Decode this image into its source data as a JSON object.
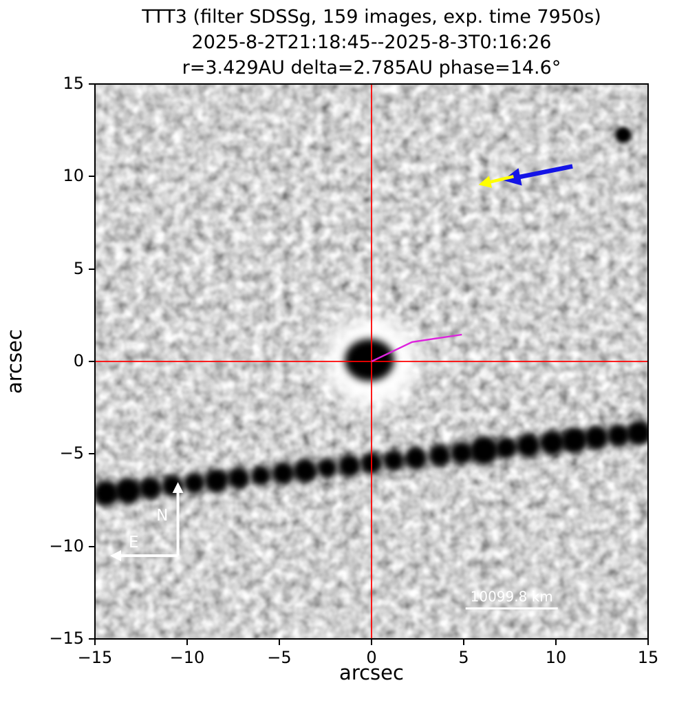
{
  "title": {
    "line1": "TTT3 (filter SDSSg, 159 images, exp. time 7950s)",
    "line2": "2025-8-2T21:18:45--2025-8-3T0:16:26",
    "line3": "r=3.429AU delta=2.785AU phase=14.6°"
  },
  "axes": {
    "xlabel": "arcsec",
    "ylabel": "arcsec",
    "x_tick_labels": [
      "−15",
      "−10",
      "−5",
      "0",
      "5",
      "10",
      "15"
    ],
    "y_tick_labels": [
      "15",
      "10",
      "5",
      "0",
      "−5",
      "−10",
      "−15"
    ]
  },
  "chart_data": {
    "type": "heatmap",
    "title": "TTT3 (filter SDSSg, 159 images, exp. time 7950s)",
    "subtitle": [
      "2025-8-2T21:18:45--2025-8-3T0:16:26",
      "r=3.429AU delta=2.785AU phase=14.6°"
    ],
    "xlabel": "arcsec",
    "ylabel": "arcsec",
    "xlim": [
      -15,
      15
    ],
    "ylim": [
      -15,
      15
    ],
    "x_ticks": [
      -15,
      -10,
      -5,
      0,
      5,
      10,
      15
    ],
    "y_ticks": [
      15,
      10,
      5,
      0,
      -5,
      -10,
      -15
    ],
    "image_description": "Grayscale stacked telescope image: bright comet coma with dark saturated nucleus at the origin, red crosshair through (0,0), magenta jet/direction line toward upper right, blue and yellow direction arrows at upper right, diagonal background star trail of dark blobs rising from (-15,-7.2) to (15,-3.9), dark field star at top right, white N/E compass at lower left, white scale bar at lower right",
    "background_gray": "#a8a8a8",
    "target": {
      "x": 0,
      "y": 0,
      "coma_radius_arcsec": 2.5,
      "nucleus_rx": 1.35,
      "nucleus_ry": 1.15
    },
    "crosshair": {
      "x": 0,
      "y": 0,
      "color": "#ff0000"
    },
    "jet_line": {
      "points": [
        [
          0,
          0
        ],
        [
          2.2,
          1.05
        ],
        [
          4.9,
          1.45
        ]
      ],
      "color": "#dd22dd"
    },
    "blue_arrow": {
      "x1": 10.9,
      "y1": 10.55,
      "x2": 7.4,
      "y2": 9.85,
      "color": "#1414e6"
    },
    "yellow_arrow": {
      "x1": 7.7,
      "y1": 10.0,
      "x2": 6.0,
      "y2": 9.6,
      "color": "#ffff00"
    },
    "field_star": {
      "x": 13.65,
      "y": 12.25
    },
    "star_trail": {
      "points": [
        [
          -14.4,
          -7.13,
          0.7
        ],
        [
          -13.2,
          -6.99,
          0.72
        ],
        [
          -12.0,
          -6.86,
          0.62
        ],
        [
          -10.8,
          -6.72,
          0.6
        ],
        [
          -9.6,
          -6.58,
          0.58
        ],
        [
          -8.4,
          -6.45,
          0.66
        ],
        [
          -7.2,
          -6.31,
          0.6
        ],
        [
          -6.0,
          -6.18,
          0.55
        ],
        [
          -4.8,
          -6.04,
          0.62
        ],
        [
          -3.6,
          -5.91,
          0.66
        ],
        [
          -2.4,
          -5.77,
          0.55
        ],
        [
          -1.2,
          -5.64,
          0.62
        ],
        [
          0.0,
          -5.5,
          0.6
        ],
        [
          1.2,
          -5.36,
          0.58
        ],
        [
          2.4,
          -5.23,
          0.62
        ],
        [
          3.7,
          -5.08,
          0.6
        ],
        [
          4.9,
          -4.95,
          0.62
        ],
        [
          6.1,
          -4.81,
          0.78
        ],
        [
          7.3,
          -4.68,
          0.6
        ],
        [
          8.5,
          -4.54,
          0.66
        ],
        [
          9.8,
          -4.39,
          0.68
        ],
        [
          11.0,
          -4.26,
          0.72
        ],
        [
          12.2,
          -4.12,
          0.66
        ],
        [
          13.4,
          -3.99,
          0.62
        ],
        [
          14.5,
          -3.86,
          0.68
        ]
      ]
    },
    "compass": {
      "origin": [
        -10.5,
        -10.5
      ],
      "north_tip": [
        -10.5,
        -6.7
      ],
      "east_tip": [
        -14.0,
        -10.5
      ],
      "label_north_pos": [
        -11.35,
        -8.6
      ],
      "label_east_pos": [
        -12.9,
        -10.05
      ],
      "labels": {
        "north": "N",
        "east": "E"
      }
    },
    "scale_bar": {
      "x1": 5.1,
      "x2": 10.1,
      "y": -13.35,
      "label": "10099.8 km"
    }
  }
}
